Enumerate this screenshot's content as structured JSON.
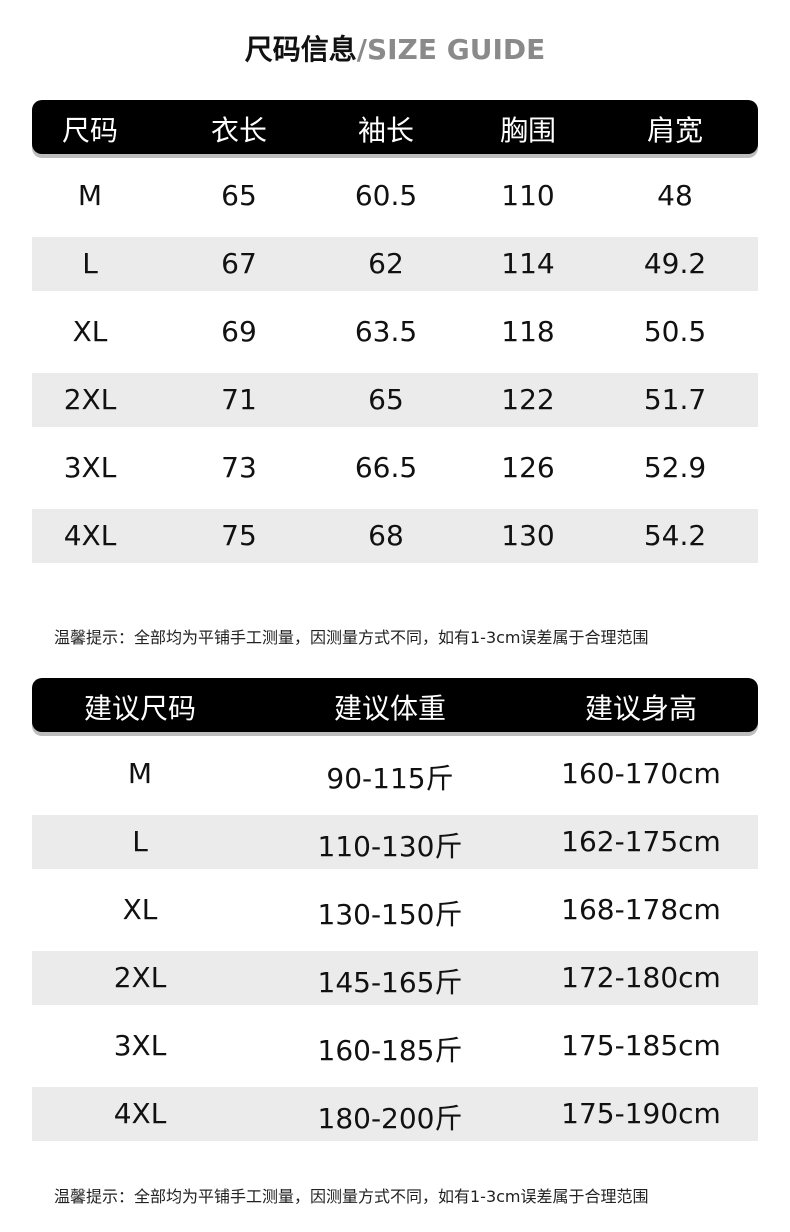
{
  "title": {
    "cn": "尺码信息",
    "en": "/SIZE GUIDE"
  },
  "size_table": {
    "headers": [
      "尺码",
      "衣长",
      "袖长",
      "胸围",
      "肩宽"
    ],
    "rows": [
      [
        "M",
        "65",
        "60.5",
        "110",
        "48"
      ],
      [
        "L",
        "67",
        "62",
        "114",
        "49.2"
      ],
      [
        "XL",
        "69",
        "63.5",
        "118",
        "50.5"
      ],
      [
        "2XL",
        "71",
        "65",
        "122",
        "51.7"
      ],
      [
        "3XL",
        "73",
        "66.5",
        "126",
        "52.9"
      ],
      [
        "4XL",
        "75",
        "68",
        "130",
        "54.2"
      ]
    ]
  },
  "note1": "温馨提示：全部均为平铺手工测量，因测量方式不同，如有1-3cm误差属于合理范围",
  "recommend_table": {
    "headers": [
      "建议尺码",
      "建议体重",
      "建议身高"
    ],
    "rows": [
      [
        "M",
        "90-115斤",
        "160-170cm"
      ],
      [
        "L",
        "110-130斤",
        "162-175cm"
      ],
      [
        "XL",
        "130-150斤",
        "168-178cm"
      ],
      [
        "2XL",
        "145-165斤",
        "172-180cm"
      ],
      [
        "3XL",
        "160-185斤",
        "175-185cm"
      ],
      [
        "4XL",
        "180-200斤",
        "175-190cm"
      ]
    ]
  },
  "note2": "温馨提示：全部均为平铺手工测量，因测量方式不同，如有1-3cm误差属于合理范围"
}
